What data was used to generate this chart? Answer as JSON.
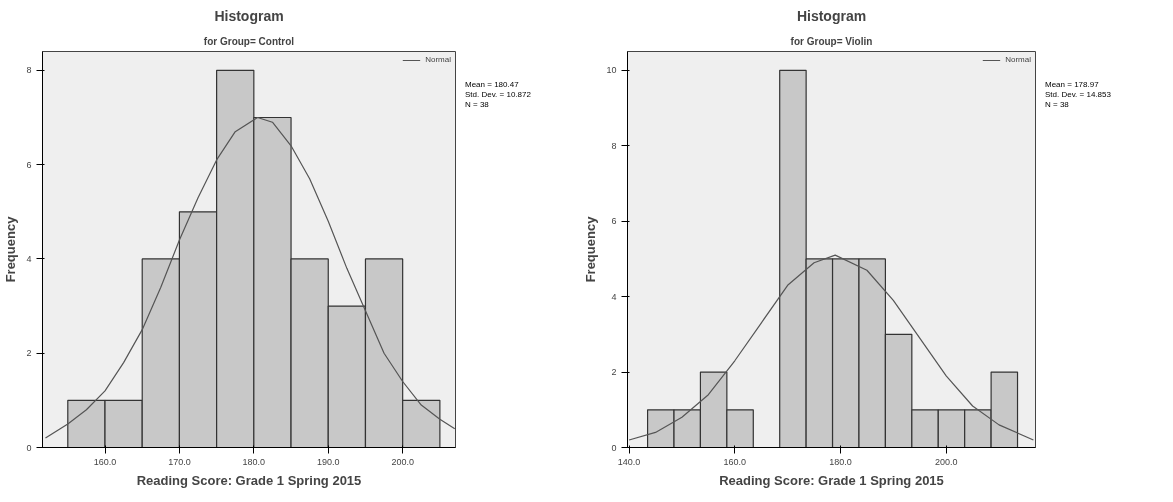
{
  "chart_data": [
    {
      "type": "histogram",
      "title": "Histogram",
      "subtitle": "for Group= Control",
      "xlabel": "Reading Score: Grade 1 Spring 2015",
      "ylabel": "Frequency",
      "bins": [
        155,
        160,
        165,
        170,
        175,
        180,
        185,
        190,
        195,
        200,
        205
      ],
      "values": [
        1,
        1,
        4,
        5,
        8,
        7,
        4,
        3,
        4,
        1
      ],
      "color": "#c8c8c8",
      "series": [
        {
          "name": "Normal",
          "type": "line",
          "color": "#555555",
          "x": [
            152,
            155,
            157.5,
            160,
            162.5,
            165,
            167.5,
            170,
            172.5,
            175,
            177.5,
            180.5,
            182.5,
            185,
            187.5,
            190,
            192.5,
            195,
            197.5,
            200,
            202.5,
            205,
            207
          ],
          "values": [
            0.2,
            0.5,
            0.8,
            1.2,
            1.8,
            2.5,
            3.4,
            4.4,
            5.3,
            6.1,
            6.7,
            7.0,
            6.9,
            6.4,
            5.7,
            4.8,
            3.8,
            2.9,
            2.0,
            1.4,
            0.9,
            0.6,
            0.4
          ]
        }
      ],
      "xlim": [
        151.6,
        207.1
      ],
      "ylim": [
        0,
        8.4
      ],
      "xticks": [
        {
          "value": 160,
          "label": "160.0"
        },
        {
          "value": 170,
          "label": "170.0"
        },
        {
          "value": 180,
          "label": "180.0"
        },
        {
          "value": 190,
          "label": "190.0"
        },
        {
          "value": 200,
          "label": "200.0"
        }
      ],
      "yticks": [
        0,
        2,
        4,
        6,
        8
      ],
      "grid": false,
      "legend": "top right",
      "annotations": [
        "Mean = 180.47",
        "Std. Dev. = 10.872",
        "N = 38"
      ]
    },
    {
      "type": "histogram",
      "title": "Histogram",
      "subtitle": "for Group= Violin",
      "xlabel": "Reading Score: Grade 1 Spring 2015",
      "ylabel": "Frequency",
      "bins": [
        143.5,
        148.5,
        153.5,
        158.5,
        163.5,
        168.5,
        173.5,
        178.5,
        183.5,
        188.5,
        193.5,
        198.5,
        203.5,
        208.5,
        213.5
      ],
      "values": [
        1,
        1,
        2,
        1,
        0,
        10,
        5,
        5,
        5,
        3,
        1,
        1,
        1,
        2
      ],
      "color": "#c8c8c8",
      "series": [
        {
          "name": "Normal",
          "type": "line",
          "color": "#555555",
          "x": [
            140,
            145,
            150,
            155,
            160,
            165,
            170,
            175,
            179,
            185,
            190,
            195,
            200,
            205,
            210,
            216.5
          ],
          "values": [
            0.2,
            0.4,
            0.8,
            1.4,
            2.3,
            3.3,
            4.3,
            4.9,
            5.1,
            4.7,
            3.9,
            2.9,
            1.9,
            1.1,
            0.6,
            0.2
          ]
        }
      ],
      "xlim": [
        139.7,
        216.9
      ],
      "ylim": [
        0,
        10.5
      ],
      "xticks": [
        {
          "value": 140,
          "label": "140.0"
        },
        {
          "value": 160,
          "label": "160.0"
        },
        {
          "value": 180,
          "label": "180.0"
        },
        {
          "value": 200,
          "label": "200.0"
        }
      ],
      "yticks": [
        0,
        2,
        4,
        6,
        8,
        10
      ],
      "grid": false,
      "legend": "top right",
      "annotations": [
        "Mean = 178.97",
        "Std. Dev. = 14.853",
        "N = 38"
      ]
    }
  ]
}
